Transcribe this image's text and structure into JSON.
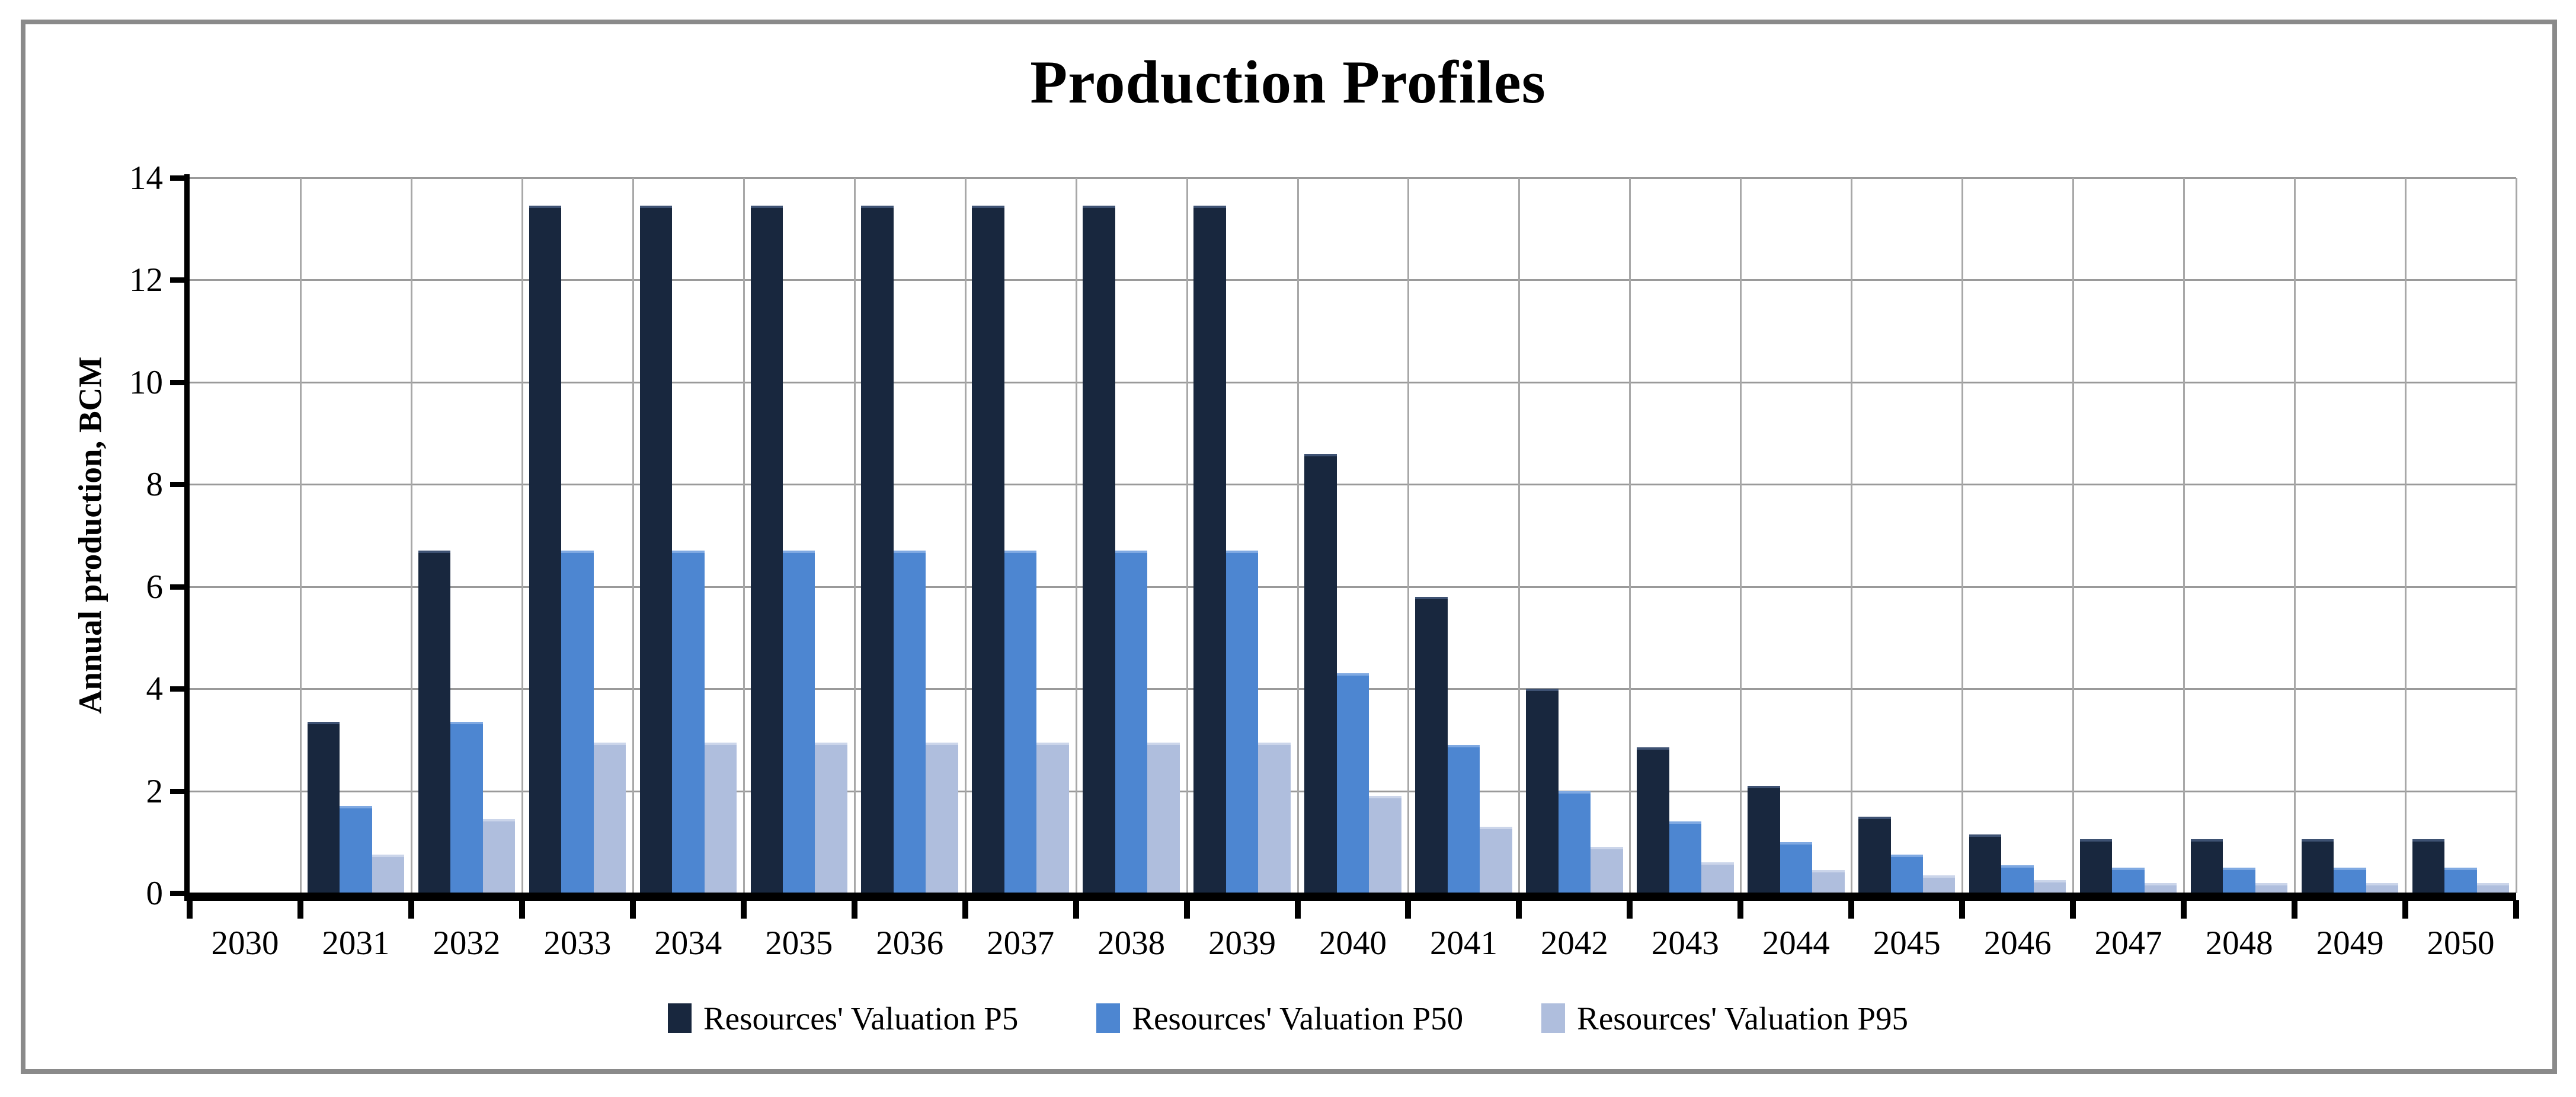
{
  "title": "Production Profiles",
  "y_axis": {
    "label": "Annual production, BCM"
  },
  "chart_data": {
    "type": "bar",
    "title": "Production Profiles",
    "xlabel": "",
    "ylabel": "Annual production, BCM",
    "ylim": [
      0,
      14
    ],
    "y_tick_step": 2,
    "grid": "horizontal gridlines + vertical category separators",
    "legend_position": "bottom-center",
    "categories": [
      "2030",
      "2031",
      "2032",
      "2033",
      "2034",
      "2035",
      "2036",
      "2037",
      "2038",
      "2039",
      "2040",
      "2041",
      "2042",
      "2043",
      "2044",
      "2045",
      "2046",
      "2047",
      "2048",
      "2049",
      "2050"
    ],
    "series": [
      {
        "name": "Resources' Valuation P5",
        "short": "p5",
        "color": "#18273E",
        "bevel": "#3E5273",
        "values": [
          0,
          3.35,
          6.7,
          13.45,
          13.45,
          13.45,
          13.45,
          13.45,
          13.45,
          13.45,
          8.6,
          5.8,
          4.0,
          2.85,
          2.1,
          1.5,
          1.15,
          1.05,
          1.05,
          1.05,
          1.05
        ]
      },
      {
        "name": "Resources' Valuation P50",
        "short": "p50",
        "color": "#4D86D1",
        "bevel": "#7FA9E2",
        "values": [
          0,
          1.7,
          3.35,
          6.7,
          6.7,
          6.7,
          6.7,
          6.7,
          6.7,
          6.7,
          4.3,
          2.9,
          2.0,
          1.4,
          1.0,
          0.75,
          0.55,
          0.5,
          0.5,
          0.5,
          0.5
        ]
      },
      {
        "name": "Resources' Valuation P95",
        "short": "p95",
        "color": "#AFBEDD",
        "bevel": "#CBD5EA",
        "values": [
          0,
          0.75,
          1.45,
          2.95,
          2.95,
          2.95,
          2.95,
          2.95,
          2.95,
          2.95,
          1.9,
          1.3,
          0.9,
          0.6,
          0.45,
          0.35,
          0.25,
          0.2,
          0.2,
          0.2,
          0.2
        ]
      }
    ]
  },
  "style_colors": {
    "frame_border": "#8a8a8a",
    "gridline_horizontal": "#9a9a9a",
    "gridline_vertical": "#a8a8a8",
    "axis": "#000000"
  }
}
